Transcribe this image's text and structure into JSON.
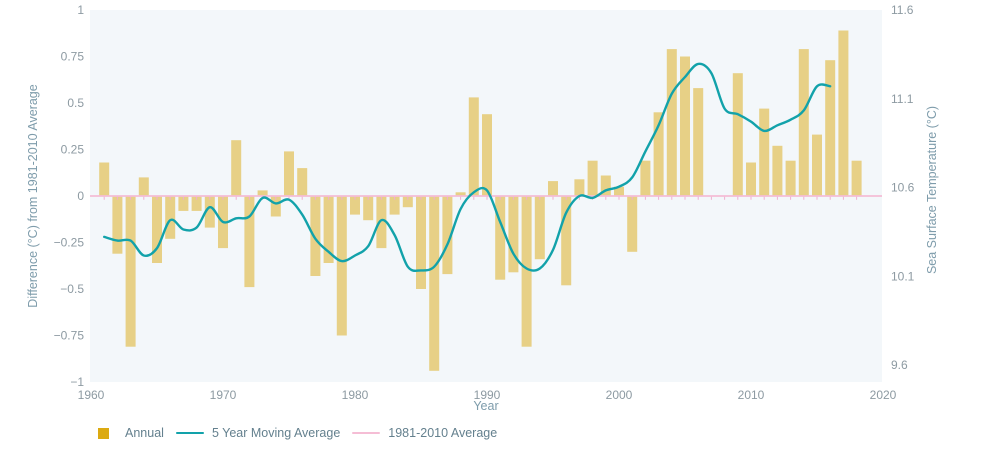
{
  "chart_data": {
    "type": "bar",
    "title": "",
    "plot_background": "#f3f7fa",
    "grid": false,
    "legend_position": "bottom-left",
    "x_axis": {
      "label": "Year",
      "ticks": [
        1960,
        1970,
        1980,
        1990,
        2000,
        2010,
        2020
      ],
      "range": [
        1959.5,
        2020
      ]
    },
    "left_axis": {
      "label": "Difference (°C) from 1981-2010 Average",
      "tick_labels": [
        "1",
        "0.75",
        "0.5",
        "0.25",
        "0",
        "−0.25",
        "−0.5",
        "−0.75",
        "−1"
      ],
      "tick_values": [
        1,
        0.75,
        0.5,
        0.25,
        0,
        -0.25,
        -0.5,
        -0.75,
        -1
      ],
      "range": [
        -1,
        1
      ]
    },
    "right_axis": {
      "label": "Sea Surface Temperature (°C)",
      "tick_labels": [
        "11.6",
        "11.1",
        "10.6",
        "10.1",
        "9.6"
      ],
      "tick_values": [
        11.6,
        11.1,
        10.6,
        10.1,
        9.6
      ],
      "range": [
        9.6,
        11.6
      ]
    },
    "series": [
      {
        "name": "Annual",
        "type": "bar",
        "color": "#dcaa11",
        "bar_opacity": 0.5,
        "x": [
          1961,
          1962,
          1963,
          1964,
          1965,
          1966,
          1967,
          1968,
          1969,
          1970,
          1971,
          1972,
          1973,
          1974,
          1975,
          1976,
          1977,
          1978,
          1979,
          1980,
          1981,
          1982,
          1983,
          1984,
          1985,
          1986,
          1987,
          1988,
          1989,
          1990,
          1991,
          1992,
          1993,
          1994,
          1995,
          1996,
          1997,
          1998,
          1999,
          2000,
          2001,
          2002,
          2003,
          2004,
          2005,
          2006,
          2007,
          2008,
          2009,
          2010,
          2011,
          2012,
          2013,
          2014,
          2015,
          2016,
          2017,
          2018
        ],
        "values": [
          0.18,
          -0.31,
          -0.81,
          0.1,
          -0.36,
          -0.23,
          -0.08,
          -0.08,
          -0.17,
          -0.28,
          0.3,
          -0.49,
          0.03,
          -0.11,
          0.24,
          0.15,
          -0.43,
          -0.36,
          -0.75,
          -0.1,
          -0.13,
          -0.28,
          -0.1,
          -0.06,
          -0.5,
          -0.94,
          -0.42,
          0.02,
          0.53,
          0.44,
          -0.45,
          -0.41,
          -0.81,
          -0.34,
          0.08,
          -0.48,
          0.09,
          0.19,
          0.11,
          0.05,
          -0.3,
          0.19,
          0.45,
          0.79,
          0.75,
          0.58,
          null,
          null,
          0.66,
          0.18,
          0.47,
          0.27,
          0.19,
          0.79,
          0.33,
          0.73,
          0.89,
          0.19
        ]
      },
      {
        "name": "5 Year Moving Average",
        "type": "line",
        "color": "#12a2aa",
        "x": [
          1961,
          1962,
          1963,
          1964,
          1965,
          1966,
          1967,
          1968,
          1969,
          1970,
          1971,
          1972,
          1973,
          1974,
          1975,
          1976,
          1977,
          1978,
          1979,
          1980,
          1981,
          1982,
          1983,
          1984,
          1985,
          1986,
          1987,
          1988,
          1989,
          1990,
          1991,
          1992,
          1993,
          1994,
          1995,
          1996,
          1997,
          1998,
          1999,
          2000,
          2001,
          2002,
          2003,
          2004,
          2005,
          2006,
          2007,
          2008,
          2009,
          2010,
          2011,
          2012,
          2013,
          2014,
          2015,
          2016
        ],
        "values": [
          -0.22,
          -0.24,
          -0.24,
          -0.32,
          -0.28,
          -0.13,
          -0.18,
          -0.17,
          -0.06,
          -0.14,
          -0.12,
          -0.11,
          -0.01,
          -0.04,
          -0.02,
          -0.1,
          -0.23,
          -0.3,
          -0.35,
          -0.32,
          -0.27,
          -0.13,
          -0.21,
          -0.38,
          -0.4,
          -0.38,
          -0.26,
          -0.07,
          0.02,
          0.03,
          -0.14,
          -0.31,
          -0.39,
          -0.39,
          -0.29,
          -0.09,
          0.0,
          -0.01,
          0.03,
          0.05,
          0.1,
          0.24,
          0.38,
          0.55,
          0.64,
          0.71,
          0.66,
          0.47,
          0.44,
          0.4,
          0.35,
          0.38,
          0.41,
          0.46,
          0.59,
          0.59
        ]
      },
      {
        "name": "1981-2010 Average",
        "type": "baseline",
        "color": "#f5bdd5",
        "value": 0
      }
    ]
  },
  "legend": {
    "items": [
      {
        "label": "Annual",
        "color": "#dcaa11",
        "symbol": "square"
      },
      {
        "label": "5 Year Moving Average",
        "color": "#12a2aa",
        "symbol": "line"
      },
      {
        "label": "1981-2010 Average",
        "color": "#f5bdd5",
        "symbol": "line"
      }
    ]
  }
}
